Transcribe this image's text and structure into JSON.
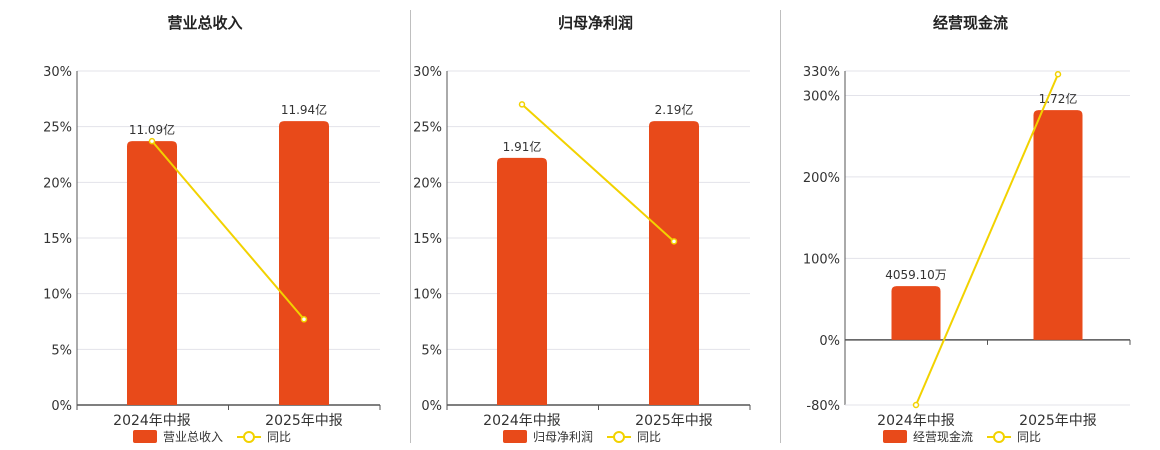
{
  "chart_data": [
    {
      "type": "bar",
      "title": "营业总收入",
      "categories": [
        "2024年中报",
        "2025年中报"
      ],
      "series": [
        {
          "name": "营业总收入",
          "type": "bar",
          "values": [
            11.09,
            11.94
          ],
          "labels": [
            "11.09亿",
            "11.94亿"
          ]
        },
        {
          "name": "同比",
          "type": "line",
          "values": [
            23.7,
            7.7
          ]
        }
      ],
      "yticks": [
        "0%",
        "5%",
        "10%",
        "15%",
        "20%",
        "25%",
        "30%"
      ],
      "ylim": [
        0,
        30
      ],
      "bar_heights_pct": [
        23.7,
        25.5
      ],
      "grid": true,
      "legend": "bottom-center"
    },
    {
      "type": "bar",
      "title": "归母净利润",
      "categories": [
        "2024年中报",
        "2025年中报"
      ],
      "series": [
        {
          "name": "归母净利润",
          "type": "bar",
          "values": [
            1.91,
            2.19
          ],
          "labels": [
            "1.91亿",
            "2.19亿"
          ]
        },
        {
          "name": "同比",
          "type": "line",
          "values": [
            27.0,
            14.7
          ]
        }
      ],
      "yticks": [
        "0%",
        "5%",
        "10%",
        "15%",
        "20%",
        "25%",
        "30%"
      ],
      "ylim": [
        0,
        30
      ],
      "bar_heights_pct": [
        22.2,
        25.5
      ],
      "grid": true,
      "legend": "bottom-center"
    },
    {
      "type": "bar",
      "title": "经营现金流",
      "categories": [
        "2024年中报",
        "2025年中报"
      ],
      "series": [
        {
          "name": "经营现金流",
          "type": "bar",
          "values": [
            0.40591,
            1.72
          ],
          "labels": [
            "4059.10万",
            "1.72亿"
          ]
        },
        {
          "name": "同比",
          "type": "line",
          "values": [
            -80,
            326
          ]
        }
      ],
      "yticks": [
        "-80%",
        "0%",
        "100%",
        "200%",
        "300%",
        "330%"
      ],
      "ylim": [
        -80,
        330
      ],
      "bar_heights_pct": [
        66,
        282
      ],
      "grid": true,
      "legend": "bottom-center"
    }
  ],
  "colors": {
    "bar": "#e84a1a",
    "line": "#f2d200",
    "axis": "#555555",
    "grid": "#e3e3ea"
  },
  "legend_icons": [
    "bar-swatch",
    "circle-line"
  ]
}
